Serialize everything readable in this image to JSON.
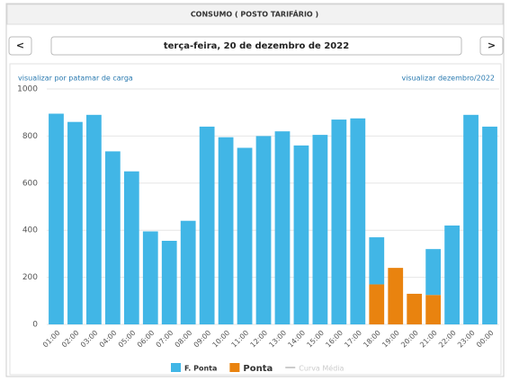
{
  "header": {
    "title": "CONSUMO ( POSTO TARIFÁRIO )"
  },
  "nav": {
    "prev": "<",
    "next": ">",
    "date": "terça-feira, 20 de dezembro de 2022"
  },
  "links": {
    "left": "visualizar por patamar de carga",
    "right": "visualizar dezembro/2022"
  },
  "chart_data": {
    "type": "stacked_bar",
    "categories": [
      "01:00",
      "02:00",
      "03:00",
      "04:00",
      "05:00",
      "06:00",
      "07:00",
      "08:00",
      "09:00",
      "10:00",
      "11:00",
      "12:00",
      "13:00",
      "14:00",
      "15:00",
      "16:00",
      "17:00",
      "18:00",
      "19:00",
      "20:00",
      "21:00",
      "22:00",
      "23:00",
      "00:00"
    ],
    "series": [
      {
        "name": "F. Ponta",
        "color": "#41b6e6",
        "values": [
          895,
          860,
          890,
          735,
          650,
          395,
          355,
          440,
          840,
          795,
          750,
          800,
          820,
          760,
          805,
          870,
          875,
          200,
          0,
          0,
          195,
          420,
          890,
          840
        ]
      },
      {
        "name": "Ponta",
        "color": "#e9830f",
        "values": [
          0,
          0,
          0,
          0,
          0,
          0,
          0,
          0,
          0,
          0,
          0,
          0,
          0,
          0,
          0,
          0,
          0,
          170,
          240,
          130,
          125,
          0,
          0,
          0
        ]
      }
    ],
    "legend_hidden": {
      "name": "Curva Média",
      "color": "#cccccc"
    },
    "ylim": [
      0,
      1000
    ],
    "yticks": [
      0,
      200,
      400,
      600,
      800,
      1000
    ],
    "grid": true
  }
}
